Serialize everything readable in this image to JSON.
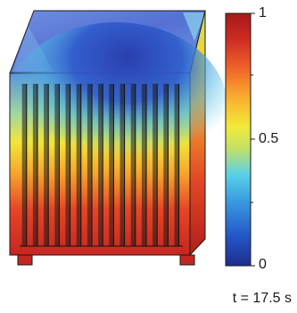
{
  "colorbar": {
    "max_label": "1",
    "mid_label": "0.5",
    "min_label": "0",
    "stops": [
      "#1e2d8f",
      "#2458c8",
      "#3a9de0",
      "#58d0e8",
      "#bfe06a",
      "#f2ea3a",
      "#f9b22e",
      "#f0652a",
      "#cc2a22",
      "#a8181a"
    ]
  },
  "annotation": {
    "time": "t = 17.5 s"
  },
  "colors": {
    "top_surface": "#5c7bd9",
    "hot": "#d83a26",
    "cold": "#2f4fb8"
  }
}
